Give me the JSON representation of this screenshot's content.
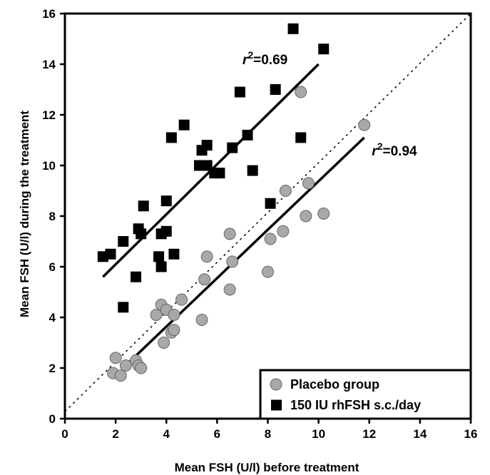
{
  "chart_data": {
    "type": "scatter",
    "title": "",
    "xlabel": "Mean FSH (U/l) before treatment",
    "ylabel": "Mean FSH (U/l) during the treatment",
    "xlim": [
      0,
      16
    ],
    "ylim": [
      0,
      16
    ],
    "xticks": [
      "0",
      "2",
      "4",
      "6",
      "8",
      "10",
      "12",
      "14",
      "16"
    ],
    "yticks": [
      "0",
      "2",
      "4",
      "6",
      "8",
      "10",
      "12",
      "14",
      "16"
    ],
    "grid": false,
    "legend_position": "bottom-right",
    "identity_line": {
      "style": "dotted",
      "from": [
        0,
        0
      ],
      "to": [
        16,
        16
      ]
    },
    "series": [
      {
        "name": "Placebo group",
        "marker": "circle",
        "color": "#a8a8a8",
        "points": [
          [
            1.9,
            1.8
          ],
          [
            2.0,
            2.4
          ],
          [
            2.2,
            1.7
          ],
          [
            2.4,
            2.1
          ],
          [
            2.8,
            2.3
          ],
          [
            2.9,
            2.1
          ],
          [
            3.0,
            2.0
          ],
          [
            3.6,
            4.1
          ],
          [
            3.8,
            4.5
          ],
          [
            3.9,
            3.0
          ],
          [
            4.0,
            4.3
          ],
          [
            4.2,
            3.4
          ],
          [
            4.3,
            4.1
          ],
          [
            4.3,
            3.5
          ],
          [
            4.6,
            4.7
          ],
          [
            5.4,
            3.9
          ],
          [
            5.5,
            5.5
          ],
          [
            5.6,
            6.4
          ],
          [
            6.5,
            7.3
          ],
          [
            6.5,
            5.1
          ],
          [
            6.6,
            6.2
          ],
          [
            8.0,
            5.8
          ],
          [
            8.1,
            7.1
          ],
          [
            8.6,
            7.4
          ],
          [
            8.7,
            9.0
          ],
          [
            9.3,
            12.9
          ],
          [
            9.5,
            8.0
          ],
          [
            9.6,
            9.3
          ],
          [
            10.2,
            8.1
          ],
          [
            11.8,
            11.6
          ]
        ],
        "fit": {
          "from": [
            2.5,
            2.2
          ],
          "to": [
            11.8,
            11.1
          ],
          "r2_label": "=0.94"
        }
      },
      {
        "name": "150 IU rhFSH s.c./day",
        "marker": "square",
        "color": "#000000",
        "points": [
          [
            1.5,
            6.4
          ],
          [
            1.8,
            6.5
          ],
          [
            2.3,
            7.0
          ],
          [
            2.3,
            4.4
          ],
          [
            2.8,
            5.6
          ],
          [
            2.9,
            7.5
          ],
          [
            3.0,
            7.3
          ],
          [
            3.1,
            8.4
          ],
          [
            3.7,
            6.4
          ],
          [
            3.8,
            6.0
          ],
          [
            3.8,
            7.3
          ],
          [
            4.0,
            7.4
          ],
          [
            4.0,
            8.6
          ],
          [
            4.2,
            11.1
          ],
          [
            4.3,
            6.5
          ],
          [
            4.7,
            11.6
          ],
          [
            5.3,
            10.0
          ],
          [
            5.4,
            10.6
          ],
          [
            5.6,
            10.8
          ],
          [
            5.6,
            10.0
          ],
          [
            5.9,
            9.7
          ],
          [
            6.1,
            9.7
          ],
          [
            6.6,
            10.7
          ],
          [
            6.9,
            12.9
          ],
          [
            7.2,
            11.2
          ],
          [
            7.4,
            9.8
          ],
          [
            8.1,
            8.5
          ],
          [
            8.3,
            13.0
          ],
          [
            9.3,
            11.1
          ],
          [
            9.0,
            15.4
          ],
          [
            10.2,
            14.6
          ]
        ],
        "fit": {
          "from": [
            1.5,
            5.6
          ],
          "to": [
            10.0,
            14.0
          ],
          "r2_label": "=0.69"
        }
      }
    ],
    "annotations": [
      {
        "text": "r",
        "superscript": "2",
        "value": "=0.69",
        "at": [
          7.0,
          14.0
        ]
      },
      {
        "text": "r",
        "superscript": "2",
        "value": "=0.94",
        "at": [
          12.1,
          10.4
        ]
      }
    ]
  }
}
